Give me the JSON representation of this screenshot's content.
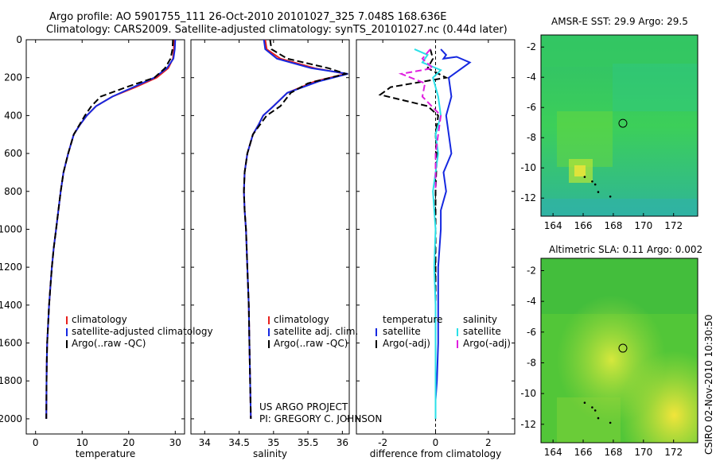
{
  "header": {
    "line1": "Argo profile: AO 5901755_111 26-Oct-2010 20101027_325 7.048S 168.636E",
    "line2": "Climatology: CARS2009. Satellite-adjusted climatology: synTS_20101027.nc (0.44d later)"
  },
  "footer": {
    "project": "US ARGO PROJECT",
    "pi": "PI: GREGORY C. JOHNSON",
    "credit": "CSIRO 02-Nov-2010 10:30:50"
  },
  "colors": {
    "climatology": "#e8201c",
    "satellite": "#1528e0",
    "argo": "#000000",
    "salinity_sat": "#2ae0e8",
    "salinity_argo": "#e020e0"
  },
  "chart_data": [
    {
      "type": "line",
      "name": "temperature",
      "xlabel": "temperature",
      "ylabel": "",
      "xlim": [
        -2,
        32
      ],
      "ylim": [
        2080,
        0
      ],
      "xticks": [
        "0",
        "10",
        "20",
        "30"
      ],
      "xtick_values": [
        0,
        10,
        20,
        30
      ],
      "yticks": [
        "0",
        "200",
        "400",
        "600",
        "800",
        "1000",
        "1200",
        "1400",
        "1600",
        "1800",
        "2000"
      ],
      "ytick_values": [
        0,
        200,
        400,
        600,
        800,
        1000,
        1200,
        1400,
        1600,
        1800,
        2000
      ],
      "legend": [
        "climatology",
        "satellite-adjusted climatology",
        "Argo(..raw -QC)"
      ],
      "legend_placement": "lower-right",
      "series": [
        {
          "name": "climatology",
          "style": "solid",
          "color": "#e8201c",
          "x": [
            29.8,
            29.7,
            29.5,
            28.5,
            26.0,
            21.5,
            16.5,
            13.0,
            11.0,
            9.5,
            8.2,
            7.0,
            6.0,
            5.4,
            4.9,
            4.4,
            3.9,
            3.5,
            3.2,
            2.9,
            2.7,
            2.5,
            2.4,
            2.35,
            2.3
          ],
          "y": [
            0,
            50,
            100,
            150,
            200,
            250,
            300,
            350,
            400,
            450,
            500,
            600,
            700,
            800,
            900,
            1000,
            1100,
            1200,
            1300,
            1400,
            1500,
            1600,
            1700,
            1800,
            2000
          ]
        },
        {
          "name": "satellite",
          "style": "solid",
          "color": "#1528e0",
          "x": [
            30.0,
            29.9,
            29.6,
            28.2,
            25.5,
            21.0,
            16.5,
            13.0,
            11.0,
            9.5,
            8.2,
            7.0,
            6.0,
            5.4,
            4.9,
            4.4,
            3.9,
            3.5,
            3.2,
            2.9,
            2.7,
            2.5,
            2.4,
            2.35,
            2.3
          ],
          "y": [
            0,
            50,
            100,
            150,
            200,
            250,
            300,
            350,
            400,
            450,
            500,
            600,
            700,
            800,
            900,
            1000,
            1100,
            1200,
            1300,
            1400,
            1500,
            1600,
            1700,
            1800,
            2000
          ]
        },
        {
          "name": "argo",
          "style": "dashed",
          "color": "#000000",
          "x": [
            29.5,
            29.4,
            29.0,
            27.8,
            25.5,
            19.5,
            14.0,
            12.0,
            10.6,
            9.4,
            8.2,
            7.0,
            6.0,
            5.4,
            4.9,
            4.4,
            3.9,
            3.5,
            3.2,
            2.9,
            2.7,
            2.5,
            2.4,
            2.35,
            2.3
          ],
          "y": [
            0,
            50,
            100,
            150,
            200,
            250,
            300,
            350,
            400,
            450,
            500,
            600,
            700,
            800,
            900,
            1000,
            1100,
            1200,
            1300,
            1400,
            1500,
            1600,
            1700,
            1800,
            2000
          ]
        }
      ]
    },
    {
      "type": "line",
      "name": "salinity",
      "xlabel": "salinity",
      "ylabel": "",
      "xlim": [
        33.8,
        36.1
      ],
      "ylim": [
        2080,
        0
      ],
      "xticks": [
        "34",
        "34.5",
        "35",
        "35.5",
        "36"
      ],
      "xtick_values": [
        34,
        34.5,
        35,
        35.5,
        36
      ],
      "legend": [
        "climatology",
        "satellite adj. clim.",
        "Argo(..raw -QC)"
      ],
      "legend_placement": "lower-right",
      "series": [
        {
          "name": "climatology",
          "style": "solid",
          "color": "#e8201c",
          "x": [
            34.88,
            34.9,
            35.1,
            35.6,
            36.05,
            35.6,
            35.2,
            35.0,
            34.85,
            34.78,
            34.7,
            34.62,
            34.58,
            34.57,
            34.58,
            34.6,
            34.62,
            34.64,
            34.65,
            34.66,
            34.67
          ],
          "y": [
            0,
            50,
            100,
            150,
            180,
            220,
            280,
            350,
            400,
            450,
            500,
            600,
            700,
            800,
            900,
            1000,
            1200,
            1400,
            1600,
            1800,
            2000
          ]
        },
        {
          "name": "satellite",
          "style": "solid",
          "color": "#1528e0",
          "x": [
            34.86,
            34.88,
            35.05,
            35.55,
            36.08,
            35.65,
            35.2,
            35.0,
            34.85,
            34.78,
            34.7,
            34.62,
            34.58,
            34.57,
            34.58,
            34.6,
            34.62,
            34.64,
            34.65,
            34.66,
            34.67
          ],
          "y": [
            0,
            50,
            100,
            150,
            180,
            220,
            280,
            350,
            400,
            450,
            500,
            600,
            700,
            800,
            900,
            1000,
            1200,
            1400,
            1600,
            1800,
            2000
          ]
        },
        {
          "name": "argo",
          "style": "dashed",
          "color": "#000000",
          "x": [
            34.95,
            34.97,
            35.2,
            35.8,
            36.05,
            35.5,
            35.25,
            35.1,
            34.9,
            34.8,
            34.7,
            34.62,
            34.58,
            34.57,
            34.58,
            34.6,
            34.62,
            34.64,
            34.65,
            34.66,
            34.67
          ],
          "y": [
            0,
            50,
            100,
            150,
            180,
            230,
            280,
            350,
            400,
            450,
            500,
            600,
            700,
            800,
            900,
            1000,
            1200,
            1400,
            1600,
            1800,
            2000
          ]
        }
      ]
    },
    {
      "type": "line",
      "name": "difference",
      "xlabel": "difference from climatology",
      "ylabel": "",
      "xlim": [
        -3,
        3
      ],
      "ylim": [
        2080,
        0
      ],
      "xticks": [
        "-2",
        "0",
        "2"
      ],
      "xtick_values": [
        -2,
        0,
        2
      ],
      "legend_temperature_title": "temperature",
      "legend_salinity_title": "salinity",
      "legend": [
        "satellite",
        "Argo(-adj)",
        "satellite",
        "Argo(-adj)"
      ],
      "legend_placement": "lower-center",
      "series": [
        {
          "name": "temperature satellite",
          "style": "solid",
          "color": "#1528e0",
          "x": [
            0.2,
            0.4,
            0.3,
            0.8,
            1.3,
            0.5,
            0.6,
            0.4,
            0.5,
            0.6,
            0.3,
            0.4,
            0.2,
            0.2,
            0.1,
            0.1,
            0.1,
            0.05,
            0.0,
            0.0
          ],
          "y": [
            50,
            80,
            100,
            90,
            120,
            200,
            300,
            400,
            500,
            600,
            700,
            800,
            900,
            1000,
            1200,
            1400,
            1600,
            1800,
            1900,
            2000
          ]
        },
        {
          "name": "temperature argo",
          "style": "dashed",
          "color": "#000000",
          "x": [
            -0.2,
            -0.1,
            -0.3,
            0.4,
            -1.7,
            -2.1,
            -0.3,
            0.1,
            0.0,
            0.05,
            0.0,
            0.0,
            0.0,
            0.0,
            0.0
          ],
          "y": [
            50,
            100,
            150,
            200,
            250,
            290,
            350,
            400,
            500,
            600,
            800,
            1000,
            1400,
            1800,
            2000
          ]
        },
        {
          "name": "salinity satellite",
          "style": "solid",
          "color": "#2ae0e8",
          "x": [
            -0.8,
            -0.3,
            -0.5,
            0.2,
            -0.1,
            0.1,
            0.2,
            0.0,
            0.1,
            -0.1,
            0.0,
            -0.05,
            0.0,
            0.0,
            0.0
          ],
          "y": [
            50,
            80,
            120,
            160,
            200,
            300,
            400,
            500,
            600,
            800,
            1000,
            1200,
            1400,
            1800,
            2000
          ]
        },
        {
          "name": "salinity argo",
          "style": "dashed",
          "color": "#e020e0",
          "x": [
            -0.2,
            -0.5,
            -0.1,
            -1.3,
            -0.4,
            -0.5,
            0.2,
            0.0,
            0.0
          ],
          "y": [
            50,
            100,
            150,
            180,
            230,
            300,
            400,
            600,
            800
          ]
        }
      ]
    },
    {
      "type": "heatmap",
      "name": "sst-map",
      "title": "AMSR-E SST: 29.9 Argo: 29.5",
      "xlim": [
        163.2,
        173.6
      ],
      "ylim": [
        -13.2,
        -1.2
      ],
      "xticks": [
        "164",
        "166",
        "168",
        "170",
        "172"
      ],
      "xtick_values": [
        164,
        166,
        168,
        170,
        172
      ],
      "yticks": [
        "-2",
        "-4",
        "-6",
        "-8",
        "-10",
        "-12"
      ],
      "ytick_values": [
        -2,
        -4,
        -6,
        -8,
        -10,
        -12
      ],
      "marker": {
        "lon": 168.636,
        "lat": -7.048
      }
    },
    {
      "type": "heatmap",
      "name": "sla-map",
      "title": "Altimetric SLA: 0.11 Argo: 0.002",
      "xlim": [
        163.2,
        173.6
      ],
      "ylim": [
        -13.2,
        -1.2
      ],
      "xticks": [
        "164",
        "166",
        "168",
        "170",
        "172"
      ],
      "xtick_values": [
        164,
        166,
        168,
        170,
        172
      ],
      "yticks": [
        "-2",
        "-4",
        "-6",
        "-8",
        "-10",
        "-12"
      ],
      "ytick_values": [
        -2,
        -4,
        -6,
        -8,
        -10,
        -12
      ],
      "marker": {
        "lon": 168.636,
        "lat": -7.048
      }
    }
  ]
}
